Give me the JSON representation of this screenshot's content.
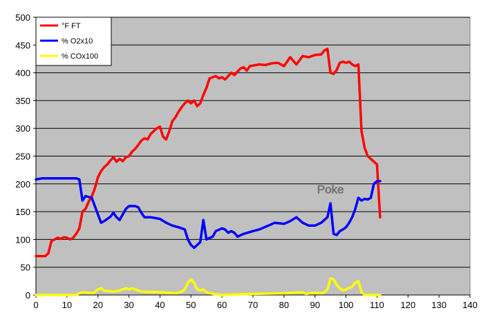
{
  "chart_data": {
    "type": "line",
    "title": "",
    "xlabel": "",
    "ylabel": "",
    "xlim": [
      0,
      140
    ],
    "ylim": [
      0,
      500
    ],
    "x_ticks": [
      0,
      10,
      20,
      30,
      40,
      50,
      60,
      70,
      80,
      90,
      100,
      110,
      120,
      130,
      140
    ],
    "y_ticks": [
      0,
      50,
      100,
      150,
      200,
      250,
      300,
      350,
      400,
      450,
      500
    ],
    "grid": "horizontal",
    "plot_background": "#C0C0C0",
    "legend_position": "top-left",
    "annotations": [
      {
        "text": "Poke",
        "x": 95,
        "y": 183
      }
    ],
    "series": [
      {
        "name": "°F FT",
        "color": "#FF0000",
        "x": [
          0,
          3,
          4,
          5,
          6,
          7,
          8,
          9,
          10,
          11,
          12,
          13,
          14,
          15,
          16,
          17,
          18,
          19,
          20,
          21,
          22,
          23,
          24,
          25,
          26,
          27,
          28,
          29,
          30,
          31,
          32,
          33,
          34,
          35,
          36,
          37,
          38,
          39,
          40,
          41,
          42,
          43,
          44,
          45,
          46,
          47,
          48,
          49,
          50,
          51,
          52,
          53,
          54,
          55,
          56,
          57,
          58,
          59,
          60,
          61,
          62,
          63,
          64,
          65,
          66,
          67,
          68,
          69,
          70,
          72,
          74,
          76,
          78,
          80,
          82,
          84,
          86,
          88,
          90,
          92,
          93,
          94,
          95,
          96,
          97,
          98,
          99,
          100,
          101,
          102,
          103,
          104,
          105,
          106,
          107,
          108,
          109,
          110,
          111
        ],
        "values": [
          70,
          70,
          75,
          97,
          100,
          103,
          101,
          104,
          103,
          100,
          103,
          110,
          120,
          150,
          155,
          168,
          177,
          192,
          212,
          223,
          230,
          235,
          242,
          248,
          240,
          245,
          241,
          248,
          250,
          258,
          263,
          270,
          278,
          282,
          280,
          290,
          295,
          300,
          303,
          285,
          280,
          295,
          313,
          320,
          330,
          338,
          345,
          350,
          345,
          350,
          340,
          345,
          360,
          373,
          390,
          392,
          394,
          390,
          392,
          388,
          394,
          400,
          396,
          402,
          408,
          410,
          404,
          412,
          413,
          415,
          414,
          417,
          418,
          412,
          428,
          415,
          430,
          428,
          432,
          433,
          440,
          443,
          400,
          398,
          405,
          418,
          420,
          418,
          420,
          415,
          412,
          415,
          295,
          265,
          250,
          245,
          240,
          235,
          140
        ]
      },
      {
        "name": "% O2x10",
        "color": "#0000FF",
        "x": [
          0,
          2,
          5,
          10,
          13,
          14,
          15,
          16,
          18,
          19,
          20,
          21,
          22,
          24,
          25,
          26,
          27,
          28,
          29,
          30,
          31,
          32,
          33,
          34,
          35,
          37,
          40,
          42,
          44,
          46,
          47,
          48,
          49,
          50,
          51,
          52,
          53,
          54,
          55,
          57,
          58,
          60,
          61,
          62,
          63,
          64,
          65,
          67,
          70,
          72,
          75,
          77,
          80,
          82,
          84,
          86,
          88,
          90,
          92,
          93,
          94,
          95,
          96,
          97,
          98,
          99,
          100,
          101,
          102,
          103,
          104,
          105,
          106,
          107,
          108,
          109,
          110,
          111
        ],
        "values": [
          208,
          210,
          210,
          210,
          210,
          208,
          170,
          178,
          175,
          160,
          145,
          130,
          133,
          141,
          148,
          140,
          135,
          145,
          155,
          160,
          160,
          160,
          158,
          148,
          140,
          140,
          137,
          130,
          125,
          122,
          120,
          118,
          100,
          90,
          85,
          90,
          95,
          135,
          100,
          105,
          115,
          120,
          118,
          112,
          115,
          112,
          105,
          110,
          115,
          118,
          125,
          130,
          128,
          133,
          140,
          130,
          125,
          125,
          130,
          135,
          140,
          165,
          110,
          108,
          115,
          118,
          122,
          130,
          140,
          155,
          175,
          170,
          173,
          172,
          175,
          200,
          205,
          205
        ]
      },
      {
        "name": "% COx100",
        "color": "#FFFF00",
        "x": [
          0,
          5,
          10,
          13,
          14,
          15,
          18,
          19,
          20,
          21,
          22,
          25,
          27,
          28,
          29,
          30,
          31,
          32,
          34,
          40,
          45,
          47,
          48,
          49,
          50,
          51,
          52,
          53,
          54,
          55,
          57,
          60,
          70,
          80,
          86,
          87,
          90,
          92,
          93,
          94,
          95,
          96,
          97,
          98,
          99,
          100,
          102,
          103,
          104,
          105,
          106,
          108,
          110,
          111
        ],
        "values": [
          0,
          0,
          0,
          0,
          3,
          5,
          3,
          5,
          10,
          12,
          8,
          6,
          8,
          10,
          12,
          10,
          12,
          10,
          6,
          5,
          3,
          6,
          10,
          22,
          28,
          22,
          10,
          8,
          10,
          5,
          2,
          0,
          2,
          3,
          5,
          2,
          4,
          3,
          5,
          10,
          30,
          28,
          18,
          12,
          8,
          10,
          15,
          22,
          25,
          5,
          0,
          0,
          0,
          0
        ]
      }
    ]
  }
}
